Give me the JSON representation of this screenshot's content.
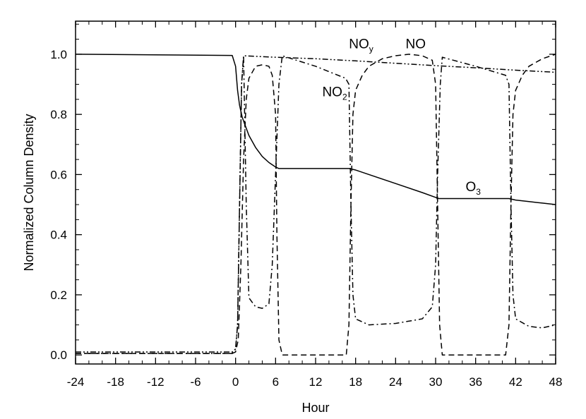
{
  "chart_data": {
    "type": "line",
    "title": "",
    "xlabel": "Hour",
    "ylabel": "Normalized Column Density",
    "xlim": [
      -24,
      48
    ],
    "ylim": [
      -0.03,
      1.11
    ],
    "xticks": [
      -24,
      -18,
      -12,
      -6,
      0,
      6,
      12,
      18,
      24,
      30,
      36,
      42,
      48
    ],
    "xtick_labels": [
      "-24",
      "-18",
      "-12",
      "-6",
      "0",
      "6",
      "12",
      "18",
      "24",
      "30",
      "36",
      "42",
      "48"
    ],
    "yticks": [
      0.0,
      0.2,
      0.4,
      0.6,
      0.8,
      1.0
    ],
    "ytick_labels": [
      "0.0",
      "0.2",
      "0.4",
      "0.6",
      "0.8",
      "1.0"
    ],
    "grid": false,
    "legend": "none",
    "series": [
      {
        "name": "O3",
        "style": "solid",
        "x": [
          -24,
          -12,
          -0.5,
          0,
          0.3,
          0.6,
          1,
          1.5,
          2,
          3,
          4,
          5,
          6,
          6.5,
          10,
          14,
          17,
          18,
          20,
          24,
          28,
          30.5,
          34,
          38,
          41,
          42,
          44,
          46,
          48
        ],
        "y": [
          1.0,
          0.998,
          0.996,
          0.96,
          0.88,
          0.83,
          0.79,
          0.76,
          0.73,
          0.69,
          0.66,
          0.64,
          0.625,
          0.62,
          0.62,
          0.62,
          0.62,
          0.615,
          0.6,
          0.57,
          0.54,
          0.52,
          0.52,
          0.52,
          0.52,
          0.515,
          0.51,
          0.505,
          0.5
        ]
      },
      {
        "name": "NOy",
        "style": "dash-dot-dot",
        "x": [
          -24,
          -12,
          -0.5,
          0,
          0.3,
          0.6,
          0.9,
          1.2,
          6,
          12,
          18,
          24,
          30,
          36,
          42,
          48
        ],
        "y": [
          0.01,
          0.01,
          0.01,
          0.02,
          0.1,
          0.5,
          0.9,
          0.995,
          0.99,
          0.985,
          0.978,
          0.97,
          0.962,
          0.955,
          0.947,
          0.94
        ]
      },
      {
        "name": "NO",
        "style": "dashed",
        "x": [
          -24,
          -12,
          -0.5,
          0,
          0.4,
          0.8,
          1.2,
          1.6,
          2,
          3,
          4,
          5,
          5.5,
          6,
          6.2,
          6.5,
          7,
          12,
          16.6,
          17,
          17.3,
          17.6,
          18,
          19,
          20,
          22,
          24,
          26,
          28,
          29.5,
          30,
          30.3,
          30.6,
          31,
          36,
          40.5,
          41,
          41.3,
          41.6,
          42,
          43,
          44,
          46,
          48
        ],
        "y": [
          0.005,
          0.005,
          0.005,
          0.01,
          0.05,
          0.3,
          0.65,
          0.85,
          0.92,
          0.96,
          0.965,
          0.96,
          0.93,
          0.8,
          0.4,
          0.05,
          0.0,
          0.0,
          0.0,
          0.1,
          0.5,
          0.8,
          0.88,
          0.93,
          0.96,
          0.985,
          0.995,
          1.0,
          0.995,
          0.98,
          0.9,
          0.5,
          0.1,
          0.0,
          0.0,
          0.0,
          0.1,
          0.5,
          0.8,
          0.88,
          0.93,
          0.96,
          0.985,
          1.0
        ]
      },
      {
        "name": "NO2",
        "style": "dash-dot",
        "x": [
          -24,
          -12,
          -0.5,
          0,
          0.3,
          0.6,
          0.9,
          1.2,
          1.6,
          2,
          3,
          4,
          5,
          5.5,
          6,
          6.5,
          7,
          12,
          16.5,
          17,
          17.3,
          17.6,
          18,
          20,
          24,
          28,
          29.5,
          30,
          30.3,
          30.7,
          31,
          36,
          40.5,
          41,
          41.3,
          41.6,
          42,
          44,
          46,
          48
        ],
        "y": [
          0.005,
          0.005,
          0.005,
          0.02,
          0.1,
          0.5,
          0.9,
          0.995,
          0.5,
          0.19,
          0.16,
          0.155,
          0.17,
          0.3,
          0.6,
          0.9,
          0.995,
          0.96,
          0.92,
          0.9,
          0.5,
          0.2,
          0.12,
          0.1,
          0.105,
          0.12,
          0.16,
          0.3,
          0.6,
          0.9,
          0.99,
          0.96,
          0.93,
          0.9,
          0.5,
          0.2,
          0.12,
          0.095,
          0.09,
          0.1
        ]
      }
    ],
    "annotations": [
      {
        "id": "noy",
        "text": "NO",
        "sub": "y",
        "x": 17,
        "y": 1.02
      },
      {
        "id": "no",
        "text": "NO",
        "sub": "",
        "x": 25.5,
        "y": 1.02
      },
      {
        "id": "no2",
        "text": "NO",
        "sub": "2",
        "x": 13,
        "y": 0.86
      },
      {
        "id": "o3",
        "text": "O",
        "sub": "3",
        "x": 34.5,
        "y": 0.545
      }
    ]
  }
}
